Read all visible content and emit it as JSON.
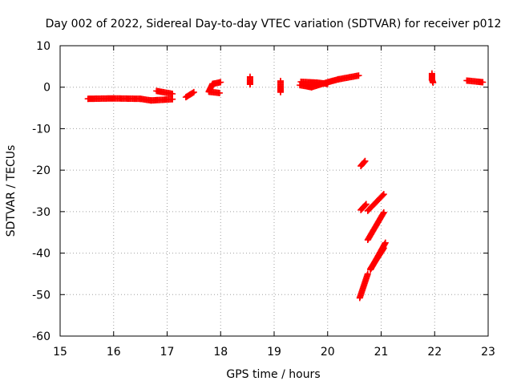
{
  "chart_data": {
    "type": "scatter",
    "title": "Day 002 of 2022, Sidereal Day-to-day VTEC variation (SDTVAR) for receiver p012",
    "xlabel": "GPS time / hours",
    "ylabel": "SDTVAR / TECUs",
    "xlim": [
      15,
      23
    ],
    "ylim": [
      -60,
      10
    ],
    "xticks": [
      "15",
      "16",
      "17",
      "18",
      "19",
      "20",
      "21",
      "22",
      "23"
    ],
    "yticks": [
      "10",
      "0",
      "-10",
      "-20",
      "-30",
      "-40",
      "-50",
      "-60"
    ],
    "grid": true,
    "marker": "plus",
    "color": "#ff0000",
    "segments": [
      {
        "x": [
          15.52,
          16.0,
          16.5,
          16.7,
          17.1
        ],
        "y": [
          -2.8,
          -2.7,
          -2.8,
          -3.2,
          -2.9
        ]
      },
      {
        "x": [
          16.8,
          17.1
        ],
        "y": [
          -0.9,
          -1.6
        ]
      },
      {
        "x": [
          17.35,
          17.5
        ],
        "y": [
          -2.4,
          -1.2
        ]
      },
      {
        "x": [
          17.78,
          17.85,
          18.0
        ],
        "y": [
          -1.0,
          0.8,
          1.2
        ]
      },
      {
        "x": [
          17.78,
          17.98
        ],
        "y": [
          -1.1,
          -1.4
        ]
      },
      {
        "x": [
          18.55,
          18.55,
          18.55
        ],
        "y": [
          1.8,
          0.7,
          2.5
        ]
      },
      {
        "x": [
          19.12,
          19.12,
          19.12
        ],
        "y": [
          1.5,
          -0.5,
          -1.2
        ]
      },
      {
        "x": [
          19.48,
          19.7,
          20.0,
          20.2,
          20.58
        ],
        "y": [
          0.5,
          0.0,
          1.2,
          1.9,
          2.8
        ]
      },
      {
        "x": [
          19.5,
          19.8,
          20.0
        ],
        "y": [
          1.3,
          1.1,
          0.8
        ]
      },
      {
        "x": [
          21.95,
          21.95,
          21.97
        ],
        "y": [
          3.3,
          1.8,
          1.1
        ]
      },
      {
        "x": [
          22.6,
          22.9
        ],
        "y": [
          1.6,
          1.2
        ]
      },
      {
        "x": [
          20.62,
          20.7
        ],
        "y": [
          -19.0,
          -17.8
        ]
      },
      {
        "x": [
          20.62,
          20.72
        ],
        "y": [
          -29.6,
          -28.2
        ]
      },
      {
        "x": [
          20.75,
          21.05
        ],
        "y": [
          -29.8,
          -25.8
        ]
      },
      {
        "x": [
          20.75,
          21.05
        ],
        "y": [
          -36.8,
          -30.2
        ]
      },
      {
        "x": [
          20.8,
          21.05
        ],
        "y": [
          -43.8,
          -38.8
        ]
      },
      {
        "x": [
          20.8,
          21.08
        ],
        "y": [
          -44.0,
          -37.5
        ]
      },
      {
        "x": [
          20.6,
          20.75
        ],
        "y": [
          -50.8,
          -45.0
        ]
      }
    ]
  }
}
